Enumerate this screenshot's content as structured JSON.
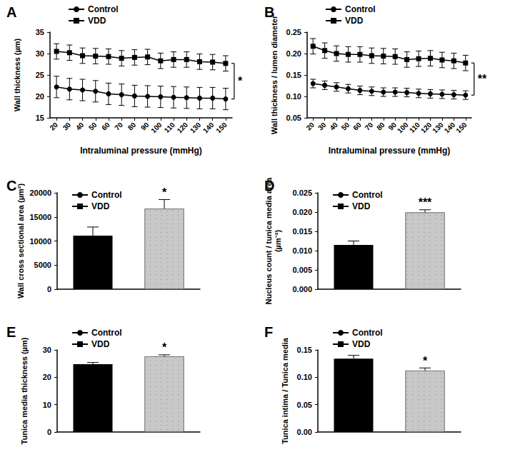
{
  "chart_data": [
    {
      "type": "line",
      "title": "A",
      "x_label": "Intraluminal pressure (mmHg)",
      "y_label": "Wall thickness (µm)",
      "x": [
        20,
        30,
        40,
        50,
        60,
        70,
        80,
        90,
        100,
        110,
        120,
        130,
        140,
        150
      ],
      "xlim": [
        15,
        155
      ],
      "xticks": [
        20,
        30,
        40,
        50,
        60,
        70,
        80,
        90,
        100,
        110,
        120,
        130,
        140,
        150
      ],
      "ylim": [
        15,
        35
      ],
      "yticks": [
        15,
        20,
        25,
        30,
        35
      ],
      "annotation": "*",
      "series": [
        {
          "name": "Control",
          "color": "#000000",
          "marker": "circle",
          "line_style": "solid",
          "values": [
            22.2,
            21.7,
            21.5,
            21.2,
            20.6,
            20.4,
            20.1,
            20.0,
            19.9,
            19.8,
            19.7,
            19.6,
            19.6,
            19.4
          ],
          "errors": [
            2.5,
            2.5,
            2.5,
            2.5,
            2.5,
            2.5,
            2.5,
            2.5,
            2.5,
            2.5,
            2.5,
            2.5,
            2.5,
            2.5
          ]
        },
        {
          "name": "VDD",
          "color": "#000000",
          "marker": "square",
          "line_style": "solid",
          "values": [
            30.5,
            30.2,
            29.5,
            29.4,
            29.3,
            28.9,
            29.1,
            29.2,
            28.3,
            28.6,
            28.6,
            28.1,
            28.0,
            27.7
          ],
          "errors": [
            1.8,
            1.8,
            1.8,
            1.8,
            1.8,
            1.8,
            1.8,
            1.8,
            1.8,
            1.8,
            1.8,
            1.8,
            1.8,
            1.8
          ]
        }
      ]
    },
    {
      "type": "line",
      "title": "B",
      "x_label": "Intraluminal pressure (mmHg)",
      "y_label": "Wall thickness / lumen diameter",
      "x": [
        20,
        30,
        40,
        50,
        60,
        70,
        80,
        90,
        100,
        110,
        120,
        130,
        140,
        150
      ],
      "xlim": [
        15,
        155
      ],
      "xticks": [
        20,
        30,
        40,
        50,
        60,
        70,
        80,
        90,
        100,
        110,
        120,
        130,
        140,
        150
      ],
      "ylim": [
        0.05,
        0.25
      ],
      "yticks": [
        {
          "value": 0.05,
          "label": "0.05"
        },
        {
          "value": 0.1,
          "label": "0.10"
        },
        {
          "value": 0.15,
          "label": "0.15"
        },
        {
          "value": 0.2,
          "label": "0.20"
        },
        {
          "value": 0.25,
          "label": "0.25"
        }
      ],
      "annotation": "**",
      "series": [
        {
          "name": "Control",
          "color": "#000000",
          "marker": "circle",
          "line_style": "solid",
          "values": [
            0.13,
            0.126,
            0.122,
            0.118,
            0.114,
            0.112,
            0.11,
            0.11,
            0.109,
            0.107,
            0.106,
            0.105,
            0.104,
            0.103
          ],
          "errors": [
            0.01,
            0.01,
            0.01,
            0.01,
            0.01,
            0.01,
            0.01,
            0.01,
            0.01,
            0.01,
            0.01,
            0.01,
            0.01,
            0.01
          ]
        },
        {
          "name": "VDD",
          "color": "#000000",
          "marker": "square",
          "line_style": "solid",
          "values": [
            0.217,
            0.207,
            0.2,
            0.198,
            0.198,
            0.195,
            0.194,
            0.193,
            0.186,
            0.188,
            0.189,
            0.185,
            0.183,
            0.178
          ],
          "errors": [
            0.018,
            0.018,
            0.018,
            0.018,
            0.018,
            0.018,
            0.018,
            0.018,
            0.018,
            0.018,
            0.018,
            0.018,
            0.018,
            0.018
          ]
        }
      ]
    },
    {
      "type": "bar",
      "title": "C",
      "y_label": "Wall cross sectional area (µm²)",
      "ylim": [
        0,
        20000
      ],
      "yticks": [
        0,
        5000,
        10000,
        15000,
        20000
      ],
      "tick_labels": "y",
      "annotation": "*",
      "series": [
        {
          "name": "Control",
          "color": "#000000",
          "values": [
            11100
          ],
          "errors": [
            1800
          ]
        },
        {
          "name": "VDD",
          "color": "#c8c8c8",
          "values": [
            16700
          ],
          "errors": [
            1900
          ]
        }
      ]
    },
    {
      "type": "bar",
      "title": "D",
      "y_label": "Nucleus count / tunica media area (µm⁻²)",
      "ylim": [
        0,
        0.025
      ],
      "yticks": [
        {
          "value": 0,
          "label": "0.000"
        },
        {
          "value": 0.005,
          "label": "0.005"
        },
        {
          "value": 0.01,
          "label": "0.010"
        },
        {
          "value": 0.015,
          "label": "0.015"
        },
        {
          "value": 0.02,
          "label": "0.020"
        },
        {
          "value": 0.025,
          "label": "0.025"
        }
      ],
      "tick_labels": "y",
      "annotation": "***",
      "series": [
        {
          "name": "Control",
          "color": "#000000",
          "values": [
            0.0115
          ],
          "errors": [
            0.001
          ]
        },
        {
          "name": "VDD",
          "color": "#c8c8c8",
          "values": [
            0.0199
          ],
          "errors": [
            0.0007
          ]
        }
      ]
    },
    {
      "type": "bar",
      "title": "E",
      "y_label": "Tunica media thickness (µm)",
      "ylim": [
        0,
        30
      ],
      "yticks": [
        0,
        10,
        20,
        30
      ],
      "tick_labels": "y",
      "annotation": "*",
      "series": [
        {
          "name": "Control",
          "color": "#000000",
          "values": [
            24.8
          ],
          "errors": [
            0.6
          ]
        },
        {
          "name": "VDD",
          "color": "#c8c8c8",
          "values": [
            27.6
          ],
          "errors": [
            0.6
          ]
        }
      ]
    },
    {
      "type": "bar",
      "title": "F",
      "y_label": "Tunica intima / Tunica media",
      "ylim": [
        0,
        0.15
      ],
      "yticks": [
        {
          "value": 0,
          "label": "0.00"
        },
        {
          "value": 0.05,
          "label": "0.05"
        },
        {
          "value": 0.1,
          "label": "0.10"
        },
        {
          "value": 0.15,
          "label": "0.15"
        }
      ],
      "tick_labels": "y",
      "annotation": "*",
      "series": [
        {
          "name": "Control",
          "color": "#000000",
          "values": [
            0.134
          ],
          "errors": [
            0.006
          ]
        },
        {
          "name": "VDD",
          "color": "#c8c8c8",
          "values": [
            0.112
          ],
          "errors": [
            0.005
          ]
        }
      ]
    }
  ]
}
